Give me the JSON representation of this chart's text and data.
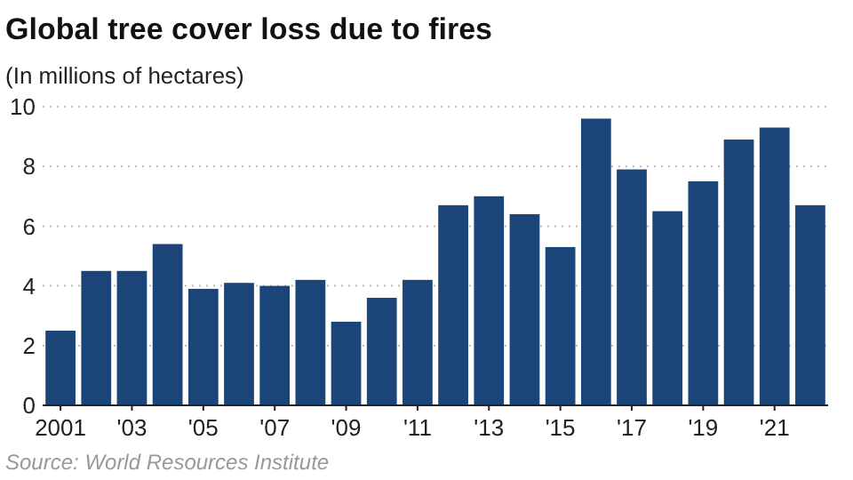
{
  "chart_data": {
    "type": "bar",
    "title": "Global tree cover loss due to fires",
    "subtitle": "(In millions of hectares)",
    "categories": [
      "2001",
      null,
      "'03",
      null,
      "'05",
      null,
      "'07",
      null,
      "'09",
      null,
      "'11",
      null,
      "'13",
      null,
      "'15",
      null,
      "'17",
      null,
      "'19",
      null,
      "'21",
      null
    ],
    "values": [
      2.5,
      4.5,
      4.5,
      5.4,
      3.9,
      4.1,
      4.0,
      4.2,
      2.8,
      3.6,
      4.2,
      6.7,
      7.0,
      6.4,
      5.3,
      9.6,
      7.9,
      6.5,
      7.5,
      8.9,
      9.3,
      6.7
    ],
    "color": "#1b4579",
    "ylim": [
      0,
      10
    ],
    "yticks": [
      0,
      2,
      4,
      6,
      8,
      10
    ],
    "grid": "y",
    "annotations": [
      "Source: World Resources Institute"
    ]
  }
}
